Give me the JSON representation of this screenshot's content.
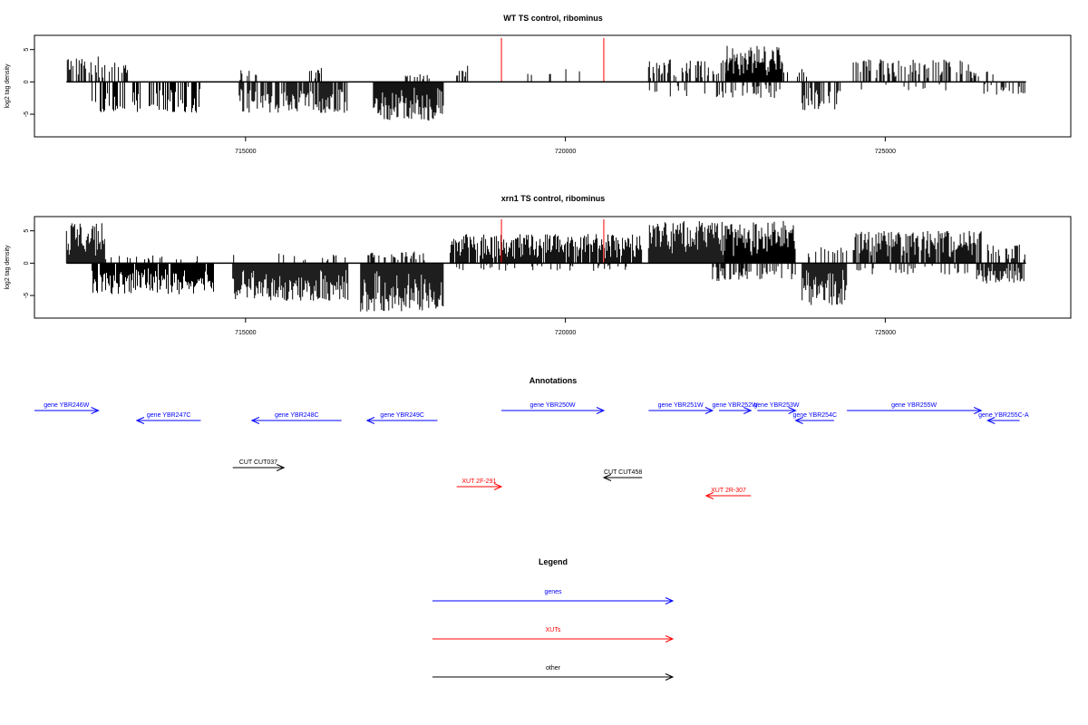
{
  "chart_data": [
    {
      "type": "bar",
      "title": "WT TS control, ribominus",
      "ylabel": "log2 tag density",
      "xlim": [
        711700,
        727900
      ],
      "ylim": [
        -8.5,
        7.2
      ],
      "xticks": [
        715000,
        720000,
        725000
      ],
      "xtick_labels": [
        "715000",
        "720000",
        "725000"
      ],
      "yticks": [
        -5,
        0,
        5
      ],
      "ytick_labels": [
        "-5",
        "0",
        "5"
      ],
      "baseline_range": [
        712200,
        727200
      ],
      "markers": [
        719000,
        720600
      ],
      "marker_color": "#ff0000",
      "bar_color": "#000000",
      "segments": [
        {
          "start": 712200,
          "end": 712700,
          "density": 0.5,
          "max": 4,
          "sign": 1
        },
        {
          "start": 712700,
          "end": 713200,
          "density": 0.3,
          "max": 3,
          "sign": 1
        },
        {
          "start": 712600,
          "end": 714300,
          "density": 0.45,
          "max": 4.8,
          "sign": -1
        },
        {
          "start": 714900,
          "end": 715200,
          "density": 0.3,
          "max": 2,
          "sign": 1
        },
        {
          "start": 716000,
          "end": 716200,
          "density": 0.4,
          "max": 2.5,
          "sign": 1
        },
        {
          "start": 714900,
          "end": 716600,
          "density": 0.8,
          "max": 4.8,
          "sign": -1
        },
        {
          "start": 717000,
          "end": 718100,
          "density": 1.4,
          "max": 6,
          "sign": -1
        },
        {
          "start": 717500,
          "end": 717900,
          "density": 0.4,
          "max": 1.2,
          "sign": 1
        },
        {
          "start": 718300,
          "end": 718500,
          "density": 0.5,
          "max": 2.6,
          "sign": 1
        },
        {
          "start": 719000,
          "end": 720600,
          "density": 0.08,
          "max": 2.5,
          "sign": 1
        },
        {
          "start": 721300,
          "end": 722600,
          "density": 0.45,
          "max": 3.5,
          "sign": 1
        },
        {
          "start": 721300,
          "end": 722600,
          "density": 0.18,
          "max": 2.5,
          "sign": -1
        },
        {
          "start": 722500,
          "end": 723400,
          "density": 1.0,
          "max": 5.6,
          "sign": 1
        },
        {
          "start": 722600,
          "end": 723400,
          "density": 0.35,
          "max": 2.5,
          "sign": -1
        },
        {
          "start": 723400,
          "end": 723800,
          "density": 0.3,
          "max": 2.0,
          "sign": 1
        },
        {
          "start": 723700,
          "end": 724300,
          "density": 0.6,
          "max": 4.4,
          "sign": -1
        },
        {
          "start": 724500,
          "end": 726300,
          "density": 0.45,
          "max": 3.5,
          "sign": 1
        },
        {
          "start": 724500,
          "end": 726000,
          "density": 0.1,
          "max": 1.5,
          "sign": -1
        },
        {
          "start": 726300,
          "end": 726700,
          "density": 0.3,
          "max": 1.8,
          "sign": 1
        },
        {
          "start": 726500,
          "end": 727200,
          "density": 0.4,
          "max": 2.0,
          "sign": -1
        }
      ]
    },
    {
      "type": "bar",
      "title": "xrn1 TS control, ribominus",
      "ylabel": "log2 tag density",
      "xlim": [
        711700,
        727900
      ],
      "ylim": [
        -8.5,
        7.2
      ],
      "xticks": [
        715000,
        720000,
        725000
      ],
      "xtick_labels": [
        "715000",
        "720000",
        "725000"
      ],
      "yticks": [
        -5,
        0,
        5
      ],
      "ytick_labels": [
        "-5",
        "0",
        "5"
      ],
      "baseline_range": [
        712200,
        727200
      ],
      "markers": [
        719000,
        720600
      ],
      "marker_color": "#ff0000",
      "bar_color": "#000000",
      "segments": [
        {
          "start": 712200,
          "end": 712800,
          "density": 1.8,
          "max": 6.2,
          "sign": 1
        },
        {
          "start": 712600,
          "end": 714500,
          "density": 0.9,
          "max": 4.8,
          "sign": -1
        },
        {
          "start": 712800,
          "end": 714300,
          "density": 0.15,
          "max": 1.2,
          "sign": 1
        },
        {
          "start": 714800,
          "end": 716600,
          "density": 1.6,
          "max": 5.8,
          "sign": -1
        },
        {
          "start": 714800,
          "end": 716600,
          "density": 0.15,
          "max": 1.5,
          "sign": 1
        },
        {
          "start": 716800,
          "end": 718100,
          "density": 2.2,
          "max": 7.6,
          "sign": -1
        },
        {
          "start": 716900,
          "end": 717800,
          "density": 0.4,
          "max": 1.8,
          "sign": 1
        },
        {
          "start": 718200,
          "end": 721200,
          "density": 0.9,
          "max": 4.5,
          "sign": 1
        },
        {
          "start": 718300,
          "end": 721000,
          "density": 0.15,
          "max": 1.2,
          "sign": -1
        },
        {
          "start": 721300,
          "end": 722600,
          "density": 1.4,
          "max": 6.5,
          "sign": 1
        },
        {
          "start": 722300,
          "end": 722800,
          "density": 0.5,
          "max": 2.8,
          "sign": -1
        },
        {
          "start": 722500,
          "end": 723600,
          "density": 1.4,
          "max": 6.6,
          "sign": 1
        },
        {
          "start": 722700,
          "end": 723600,
          "density": 0.5,
          "max": 2.5,
          "sign": -1
        },
        {
          "start": 723700,
          "end": 724400,
          "density": 1.2,
          "max": 6.5,
          "sign": -1
        },
        {
          "start": 723700,
          "end": 724400,
          "density": 0.3,
          "max": 2.5,
          "sign": 1
        },
        {
          "start": 724500,
          "end": 726500,
          "density": 0.9,
          "max": 5.0,
          "sign": 1
        },
        {
          "start": 724500,
          "end": 726300,
          "density": 0.2,
          "max": 1.8,
          "sign": -1
        },
        {
          "start": 726400,
          "end": 727200,
          "density": 0.8,
          "max": 3.2,
          "sign": -1
        },
        {
          "start": 726600,
          "end": 727200,
          "density": 0.5,
          "max": 3.0,
          "sign": 1
        }
      ]
    }
  ],
  "annotations": {
    "title": "Annotations",
    "items": [
      {
        "label": "gene YBR246W",
        "start": 711700,
        "end": 712700,
        "dir": "right",
        "row": 0,
        "color": "#0000ff"
      },
      {
        "label": "gene YBR247C",
        "start": 713300,
        "end": 714300,
        "dir": "left",
        "row": 1,
        "color": "#0000ff"
      },
      {
        "label": "gene YBR248C",
        "start": 715100,
        "end": 716500,
        "dir": "left",
        "row": 1,
        "color": "#0000ff"
      },
      {
        "label": "gene YBR249C",
        "start": 716900,
        "end": 718000,
        "dir": "left",
        "row": 1,
        "color": "#0000ff"
      },
      {
        "label": "gene YBR250W",
        "start": 719000,
        "end": 720600,
        "dir": "right",
        "row": 0,
        "color": "#0000ff"
      },
      {
        "label": "gene YBR251W",
        "start": 721300,
        "end": 722300,
        "dir": "right",
        "row": 0,
        "color": "#0000ff"
      },
      {
        "label": "gene YBR252W",
        "start": 722400,
        "end": 722900,
        "dir": "right",
        "row": 0,
        "color": "#0000ff"
      },
      {
        "label": "gene YBR253W",
        "start": 723000,
        "end": 723600,
        "dir": "right",
        "row": 0,
        "color": "#0000ff"
      },
      {
        "label": "gene YBR254C",
        "start": 723600,
        "end": 724200,
        "dir": "left",
        "row": 1,
        "color": "#0000ff"
      },
      {
        "label": "gene YBR255W",
        "start": 724400,
        "end": 726500,
        "dir": "right",
        "row": 0,
        "color": "#0000ff"
      },
      {
        "label": "gene YBR255C-A",
        "start": 726600,
        "end": 727100,
        "dir": "left",
        "row": 1,
        "color": "#0000ff"
      },
      {
        "label": "CUT CUT037",
        "start": 714800,
        "end": 715600,
        "dir": "right",
        "row": 2,
        "color": "#000000"
      },
      {
        "label": "CUT CUT458",
        "start": 720600,
        "end": 721200,
        "dir": "left",
        "row": 3,
        "color": "#000000"
      },
      {
        "label": "XUT 2F-291",
        "start": 718300,
        "end": 719000,
        "dir": "right",
        "row": 4,
        "color": "#ff0000"
      },
      {
        "label": "XUT 2R-307",
        "start": 722200,
        "end": 722900,
        "dir": "left",
        "row": 5,
        "color": "#ff0000"
      }
    ]
  },
  "legend": {
    "title": "Legend",
    "items": [
      {
        "label": "genes",
        "color": "#0000ff"
      },
      {
        "label": "XUTs",
        "color": "#ff0000"
      },
      {
        "label": "other",
        "color": "#000000"
      }
    ]
  }
}
